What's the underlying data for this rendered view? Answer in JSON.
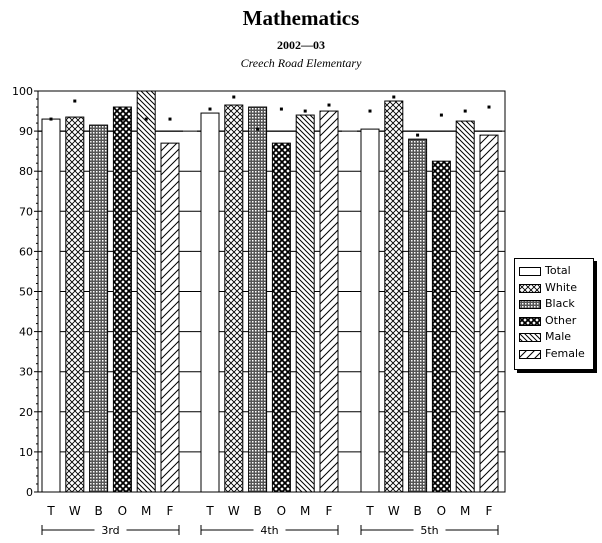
{
  "title": "Mathematics",
  "subtitle": "2002—03",
  "school": "Creech Road Elementary",
  "chart_data": {
    "type": "bar",
    "title": "Mathematics",
    "subtitle": "2002—03",
    "ylim": [
      0,
      100
    ],
    "yticks": [
      0,
      10,
      20,
      30,
      40,
      50,
      60,
      70,
      80,
      90,
      100
    ],
    "groups": [
      {
        "label": "3rd",
        "reference": 90,
        "values": [
          93,
          93.5,
          91.5,
          96,
          100,
          87
        ],
        "markers": [
          93,
          97.5,
          null,
          93,
          93,
          93
        ]
      },
      {
        "label": "4th",
        "reference": 90,
        "values": [
          94.5,
          96.5,
          96,
          87,
          94,
          95
        ],
        "markers": [
          95.5,
          98.5,
          90.5,
          95.5,
          95,
          96.5
        ]
      },
      {
        "label": "5th",
        "reference": 90,
        "values": [
          90.5,
          97.5,
          88,
          82.5,
          92.5,
          89
        ],
        "markers": [
          95,
          98.5,
          89,
          94,
          95,
          96
        ]
      }
    ],
    "series": [
      {
        "code": "T",
        "name": "Total",
        "pattern": "blank"
      },
      {
        "code": "W",
        "name": "White",
        "pattern": "crosshatch"
      },
      {
        "code": "B",
        "name": "Black",
        "pattern": "dense"
      },
      {
        "code": "O",
        "name": "Other",
        "pattern": "checker"
      },
      {
        "code": "M",
        "name": "Male",
        "pattern": "backslash"
      },
      {
        "code": "F",
        "name": "Female",
        "pattern": "hlines"
      }
    ],
    "legend": "right",
    "grid": true
  }
}
